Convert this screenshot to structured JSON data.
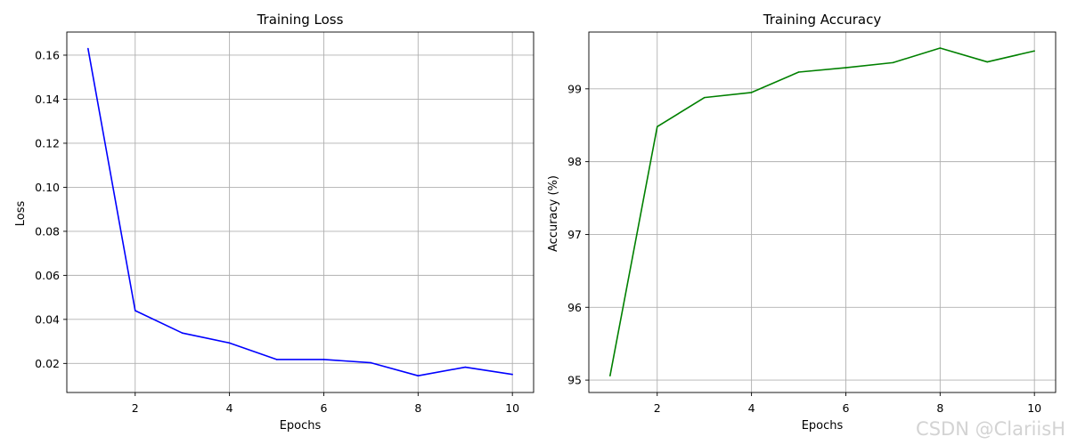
{
  "chart_data": [
    {
      "type": "line",
      "title": "Training Loss",
      "xlabel": "Epochs",
      "ylabel": "Loss",
      "grid": true,
      "x": [
        1,
        2,
        3,
        4,
        5,
        6,
        7,
        8,
        9,
        10
      ],
      "xticks": [
        2,
        4,
        6,
        8,
        10
      ],
      "xlim": [
        0.55,
        10.45
      ],
      "yticks": [
        0.02,
        0.04,
        0.06,
        0.08,
        0.1,
        0.12,
        0.14,
        0.16
      ],
      "ytick_labels": [
        "0.02",
        "0.04",
        "0.06",
        "0.08",
        "0.10",
        "0.12",
        "0.14",
        "0.16"
      ],
      "ylim": [
        0.0068,
        0.1705
      ],
      "series": [
        {
          "color": "#0000ff",
          "values": [
            0.163,
            0.044,
            0.0338,
            0.0293,
            0.0218,
            0.0218,
            0.0203,
            0.0144,
            0.0183,
            0.015
          ]
        }
      ]
    },
    {
      "type": "line",
      "title": "Training Accuracy",
      "xlabel": "Epochs",
      "ylabel": "Accuracy (%)",
      "grid": true,
      "x": [
        1,
        2,
        3,
        4,
        5,
        6,
        7,
        8,
        9,
        10
      ],
      "xticks": [
        2,
        4,
        6,
        8,
        10
      ],
      "xlim": [
        0.55,
        10.45
      ],
      "yticks": [
        95,
        96,
        97,
        98,
        99
      ],
      "ytick_labels": [
        "95",
        "96",
        "97",
        "98",
        "99"
      ],
      "ylim": [
        94.83,
        99.78
      ],
      "series": [
        {
          "color": "#008000",
          "values": [
            95.06,
            98.48,
            98.88,
            98.95,
            99.23,
            99.29,
            99.36,
            99.56,
            99.37,
            99.52
          ]
        }
      ]
    }
  ],
  "watermark": "CSDN @ClariisH"
}
